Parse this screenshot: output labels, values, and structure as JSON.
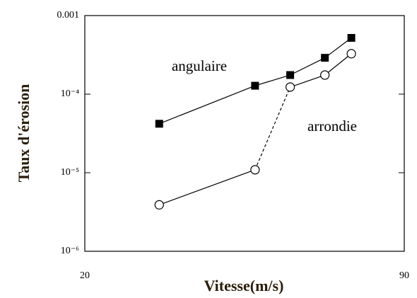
{
  "chart_data": {
    "type": "line",
    "xlabel": "Vitesse(m/s)",
    "ylabel": "Taux d'érosion",
    "xlim": [
      20,
      90
    ],
    "xticks": [
      20,
      90
    ],
    "ylim": [
      1e-06,
      0.001
    ],
    "log_y": true,
    "yticks": [
      {
        "value": 0.001,
        "label": "0.001"
      },
      {
        "value": 0.0001,
        "label": "10⁻⁴"
      },
      {
        "value": 1e-05,
        "label": "10⁻⁵"
      },
      {
        "value": 1e-06,
        "label": "10⁻⁶"
      }
    ],
    "series": [
      {
        "name": "angulaire",
        "color": "#000000",
        "marker": "filled-square",
        "x": [
          36.3,
          57.3,
          65,
          72.6,
          78.4
        ],
        "values": [
          4.2e-05,
          0.000128,
          0.000175,
          0.00029,
          0.00052
        ],
        "dash": [
          false,
          false,
          false,
          false
        ]
      },
      {
        "name": "arrondie",
        "color": "#000000",
        "marker": "open-circle",
        "x": [
          36.3,
          57.3,
          65,
          72.6,
          78.4
        ],
        "values": [
          3.9e-06,
          1.09e-05,
          0.000123,
          0.000175,
          0.000327
        ],
        "dash": [
          false,
          true,
          false,
          false
        ]
      }
    ]
  }
}
